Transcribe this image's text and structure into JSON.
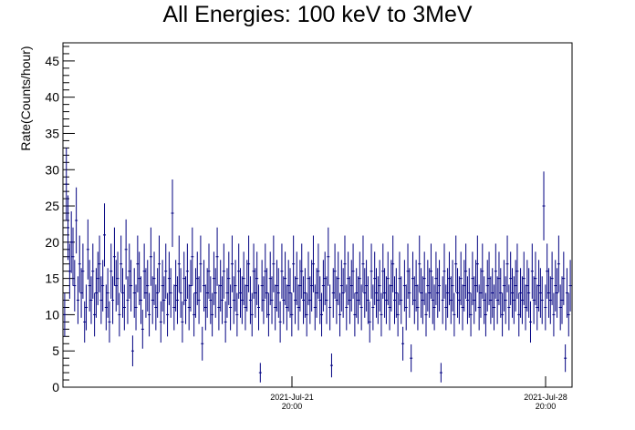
{
  "chart_data": {
    "type": "scatter",
    "title": "All Energies:  100 keV to 3MeV",
    "xlabel": "",
    "ylabel": "Rate(Counts/hour)",
    "x_ticks": [
      {
        "date": "2021-Jul-21",
        "time": "20:00"
      },
      {
        "date": "2021-Jul-28",
        "time": "20:00"
      }
    ],
    "x_range": [
      "2021-Jul-15 09:00",
      "2021-Jul-29 00:00"
    ],
    "ylim": [
      0,
      47.5
    ],
    "y_ticks": [
      0,
      5,
      10,
      15,
      20,
      25,
      30,
      35,
      40,
      45
    ],
    "grid": false,
    "error_bars": "sqrt(counts)",
    "marker_color": "#000080",
    "series": [
      {
        "values": [
          10,
          28,
          22,
          16,
          20,
          18,
          14,
          23,
          12,
          17,
          13,
          16,
          9,
          11,
          19,
          14,
          12,
          16,
          10,
          13,
          15,
          17,
          12,
          14,
          21,
          11,
          13,
          9,
          16,
          12,
          18,
          14,
          15,
          10,
          17,
          13,
          11,
          19,
          12,
          16,
          14,
          5,
          13,
          11,
          17,
          15,
          12,
          8,
          16,
          13,
          14,
          10,
          18,
          12,
          15,
          11,
          13,
          17,
          9,
          14,
          12,
          16,
          10,
          15,
          13,
          24,
          11,
          14,
          12,
          17,
          13,
          9,
          15,
          12,
          16,
          11,
          14,
          18,
          10,
          13,
          15,
          12,
          17,
          6,
          14,
          11,
          13,
          16,
          12,
          10,
          15,
          13,
          18,
          11,
          14,
          12,
          16,
          9,
          13,
          15,
          11,
          17,
          12,
          14,
          10,
          16,
          13,
          12,
          15,
          11,
          14,
          17,
          12,
          10,
          16,
          13,
          15,
          11,
          2,
          14,
          12,
          16,
          13,
          10,
          15,
          12,
          17,
          11,
          14,
          13,
          9,
          16,
          12,
          15,
          11,
          14,
          13,
          10,
          17,
          12,
          15,
          11,
          14,
          16,
          12,
          13,
          10,
          15,
          12,
          14,
          17,
          11,
          13,
          16,
          12,
          10,
          14,
          15,
          12,
          18,
          11,
          3,
          13,
          16,
          12,
          15,
          10,
          14,
          13,
          17,
          11,
          15,
          12,
          14,
          16,
          10,
          13,
          12,
          15,
          11,
          17,
          13,
          14,
          12,
          9,
          16,
          11,
          15,
          13,
          12,
          14,
          10,
          16,
          13,
          12,
          15,
          11,
          14,
          17,
          12,
          13,
          10,
          15,
          12,
          6,
          14,
          11,
          16,
          13,
          4,
          15,
          12,
          14,
          11,
          17,
          13,
          12,
          15,
          10,
          14,
          13,
          16,
          12,
          11,
          15,
          13,
          14,
          2,
          12,
          16,
          11,
          13,
          15,
          12,
          14,
          10,
          17,
          13,
          12,
          15,
          11,
          14,
          16,
          12,
          13,
          10,
          15,
          12,
          14,
          17,
          11,
          13,
          16,
          12,
          10,
          14,
          15,
          12,
          13,
          11,
          16,
          12,
          15,
          13,
          10,
          14,
          12,
          17,
          11,
          15,
          13,
          12,
          14,
          16,
          10,
          13,
          12,
          15,
          11,
          14,
          13,
          9,
          16,
          12,
          15,
          11,
          14,
          13,
          12,
          25,
          11,
          16,
          13,
          12,
          15,
          10,
          14,
          13,
          17,
          11,
          12,
          15,
          4,
          13,
          10,
          14
        ]
      }
    ]
  }
}
